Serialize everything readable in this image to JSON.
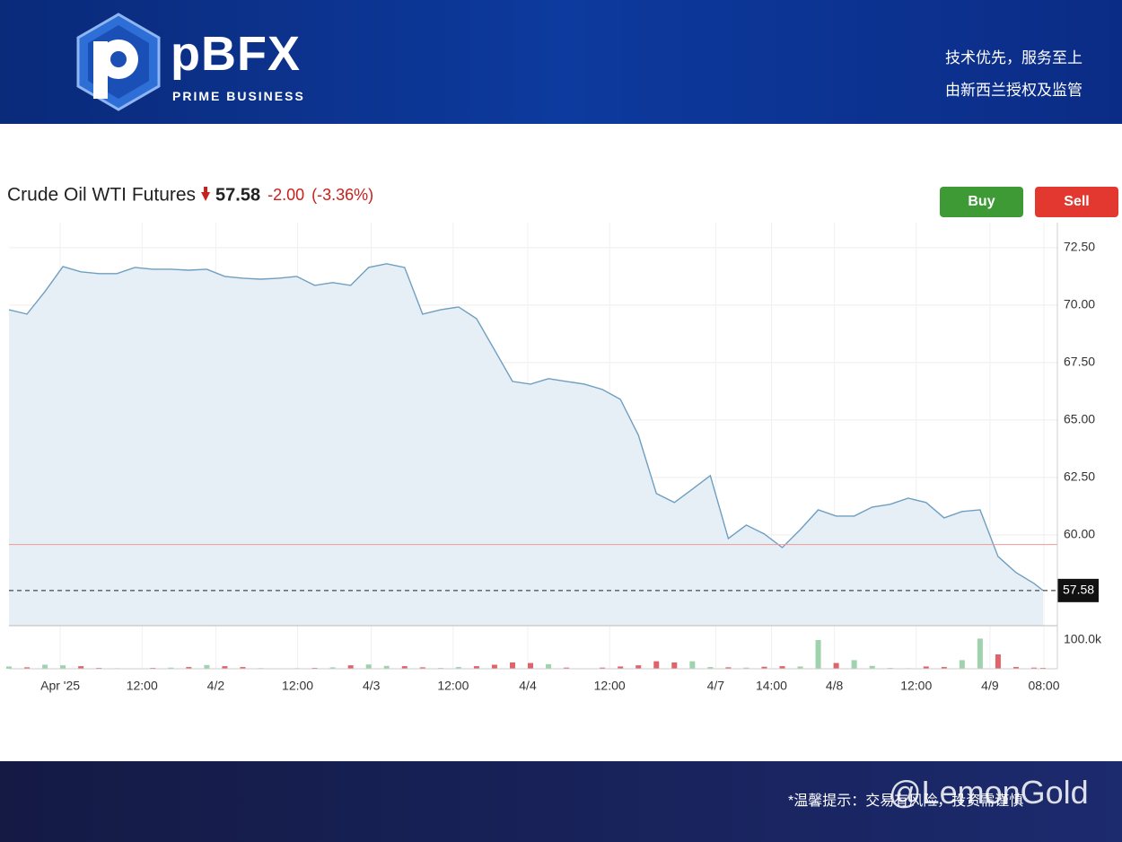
{
  "header": {
    "brand": "pBFX",
    "brand_sub": "PRIME BUSINESS",
    "tagline": [
      "技术优先，服务至上",
      "由新西兰授权及监管"
    ]
  },
  "footer": {
    "notice": "*温馨提示：交易有风险，投资需谨慎",
    "watermark": "@LemonGold"
  },
  "buttons": [
    "Buy",
    "Sell"
  ],
  "chart_data": {
    "type": "line",
    "title": "Crude Oil WTI Futures",
    "last_price": {
      "value": 57.58,
      "label": "57.58"
    },
    "change": {
      "value": -2.0,
      "label": "-2.00"
    },
    "change_pct": {
      "value": -3.36,
      "label": "(-3.36%)"
    },
    "prev_close": 59.58,
    "color": "#6f9fc0",
    "fill": "#e6eef6",
    "up_color": "#9fd3ad",
    "down_color": "#e0626b",
    "prev_close_color": "#ee9a9a",
    "grid": true,
    "x": [
      0,
      2,
      4,
      6,
      8,
      10,
      12,
      14,
      16,
      18,
      20,
      22,
      24,
      26,
      28,
      30,
      32,
      34,
      36,
      38,
      40,
      42,
      44,
      46,
      48,
      50,
      52,
      54,
      56,
      58,
      60,
      62,
      64,
      66,
      68,
      70,
      72,
      74,
      76,
      78,
      80,
      82,
      84,
      86,
      88,
      90,
      92,
      94,
      96,
      98,
      100,
      102,
      104,
      106,
      108,
      110,
      112,
      114,
      115
    ],
    "values": [
      69.8,
      69.61,
      70.59,
      71.68,
      71.45,
      71.37,
      71.37,
      71.64,
      71.56,
      71.56,
      71.52,
      71.56,
      71.25,
      71.17,
      71.13,
      71.17,
      71.25,
      70.86,
      70.98,
      70.86,
      71.64,
      71.8,
      71.64,
      69.61,
      69.8,
      69.92,
      69.41,
      68.05,
      66.68,
      66.56,
      66.8,
      66.68,
      66.56,
      66.33,
      65.9,
      64.34,
      61.8,
      61.41,
      61.99,
      62.58,
      59.84,
      60.43,
      60.04,
      59.45,
      60.23,
      61.09,
      60.82,
      60.82,
      61.21,
      61.33,
      61.6,
      61.41,
      60.74,
      61.02,
      61.09,
      59.06,
      58.36,
      57.89,
      57.58
    ],
    "xlim": [
      0,
      115
    ],
    "ylim": [
      56.05,
      73.2
    ],
    "yticks": [
      {
        "value": 60,
        "label": "60.00"
      },
      {
        "value": 62.5,
        "label": "62.50"
      },
      {
        "value": 65,
        "label": "65.00"
      },
      {
        "value": 67.5,
        "label": "67.50"
      },
      {
        "value": 70,
        "label": "70.00"
      },
      {
        "value": 72.5,
        "label": "72.50"
      }
    ],
    "xticks": [
      {
        "value": 5.7,
        "label": "Apr '25"
      },
      {
        "value": 14.8,
        "label": "12:00"
      },
      {
        "value": 23,
        "label": "4/2"
      },
      {
        "value": 32.1,
        "label": "12:00"
      },
      {
        "value": 40.3,
        "label": "4/3"
      },
      {
        "value": 49.4,
        "label": "12:00"
      },
      {
        "value": 57.7,
        "label": "4/4"
      },
      {
        "value": 66.8,
        "label": "12:00"
      },
      {
        "value": 78.6,
        "label": "4/7"
      },
      {
        "value": 84.8,
        "label": "14:00"
      },
      {
        "value": 91.8,
        "label": "4/8"
      },
      {
        "value": 100.9,
        "label": "12:00"
      },
      {
        "value": 109.1,
        "label": "4/9"
      },
      {
        "value": 115.1,
        "label": "08:00"
      }
    ],
    "volume": {
      "values": [
        8000,
        5000,
        14000,
        12000,
        9000,
        3000,
        2000,
        1500,
        3000,
        4000,
        6000,
        13000,
        9000,
        6000,
        2000,
        1500,
        2000,
        3000,
        5000,
        12000,
        15000,
        10000,
        9000,
        5000,
        3000,
        6000,
        9000,
        14000,
        22000,
        20000,
        16000,
        4000,
        1500,
        4000,
        8000,
        12000,
        26000,
        22000,
        26000,
        6000,
        5000,
        4000,
        7000,
        9000,
        8000,
        100000,
        20000,
        30000,
        10000,
        3000,
        2000,
        8000,
        6000,
        30000,
        105000,
        50000,
        6000,
        4000,
        3000
      ],
      "ylim": [
        0,
        150000
      ],
      "yticks": [
        {
          "value": 100000,
          "label": "100.0k"
        }
      ]
    }
  }
}
